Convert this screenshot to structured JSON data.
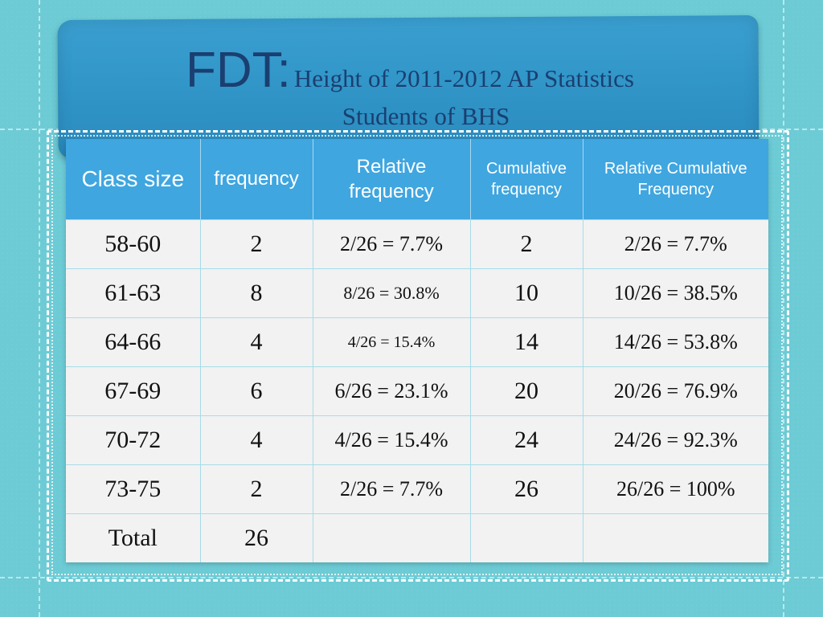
{
  "title": {
    "main": "FDT:",
    "subtitle_line1": "Height of 2011-2012 AP Statistics",
    "subtitle_line2": "Students of BHS"
  },
  "colors": {
    "background": "#6ccbd5",
    "banner": "#3a9fd0",
    "title_text": "#1a3f70",
    "header_fill": "#3fa6e0",
    "table_body": "#f2f2f2"
  },
  "table": {
    "headers": [
      "Class size",
      "frequency",
      "Relative frequency",
      "Cumulative frequency",
      "Relative Cumulative Frequency"
    ],
    "rows": [
      [
        "58-60",
        "2",
        "2/26 = 7.7%",
        "2",
        "2/26 = 7.7%"
      ],
      [
        "61-63",
        "8",
        "8/26 = 30.8%",
        "10",
        "10/26 = 38.5%"
      ],
      [
        "64-66",
        "4",
        "4/26 = 15.4%",
        "14",
        "14/26 = 53.8%"
      ],
      [
        "67-69",
        "6",
        "6/26 = 23.1%",
        "20",
        "20/26 = 76.9%"
      ],
      [
        "70-72",
        "4",
        "4/26 = 15.4%",
        "24",
        "24/26 = 92.3%"
      ],
      [
        "73-75",
        "2",
        "2/26 = 7.7%",
        "26",
        "26/26 = 100%"
      ]
    ],
    "total": [
      "Total",
      "26",
      "",
      "",
      ""
    ]
  }
}
